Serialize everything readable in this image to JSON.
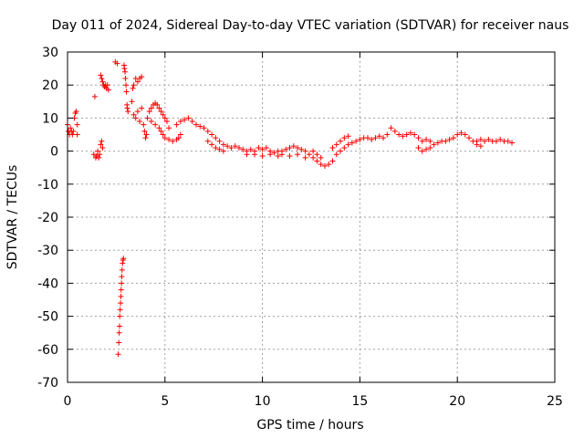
{
  "chart_data": {
    "type": "scatter",
    "title": "Day 011 of 2024, Sidereal Day-to-day VTEC variation (SDTVAR) for receiver naus",
    "xlabel": "GPS time / hours",
    "ylabel": "SDTVAR / TECUs",
    "xlim": [
      0,
      25
    ],
    "ylim": [
      -70,
      30
    ],
    "x_ticks": [
      0,
      5,
      10,
      15,
      20,
      25
    ],
    "y_ticks": [
      -70,
      -60,
      -50,
      -40,
      -30,
      -20,
      -10,
      0,
      10,
      20,
      30
    ],
    "x_tick_labels": [
      "0",
      "5",
      "10",
      "15",
      "20",
      "25"
    ],
    "y_tick_labels": [
      "-70",
      "-60",
      "-50",
      "-40",
      "-30",
      "-20",
      "-10",
      "0",
      "10",
      "20",
      "30"
    ],
    "grid": true,
    "marker": "+",
    "color": "#ff0000",
    "series": [
      {
        "name": "SDTVAR",
        "points": [
          [
            0.0,
            8
          ],
          [
            0.05,
            6
          ],
          [
            0.1,
            5
          ],
          [
            0.15,
            7
          ],
          [
            0.2,
            6
          ],
          [
            0.25,
            5
          ],
          [
            0.3,
            6
          ],
          [
            0.35,
            10
          ],
          [
            0.4,
            11.5
          ],
          [
            0.45,
            12
          ],
          [
            0.5,
            8
          ],
          [
            0.5,
            5
          ],
          [
            1.4,
            16.5
          ],
          [
            1.35,
            -1
          ],
          [
            1.45,
            -2
          ],
          [
            1.5,
            -1.5
          ],
          [
            1.55,
            0
          ],
          [
            1.6,
            -2
          ],
          [
            1.65,
            -1
          ],
          [
            1.7,
            2
          ],
          [
            1.75,
            3
          ],
          [
            1.8,
            1
          ],
          [
            1.7,
            23
          ],
          [
            1.75,
            22
          ],
          [
            1.8,
            21
          ],
          [
            1.85,
            20
          ],
          [
            1.9,
            19.5
          ],
          [
            1.95,
            20
          ],
          [
            2.0,
            19
          ],
          [
            2.05,
            20
          ],
          [
            2.1,
            18.5
          ],
          [
            2.45,
            27
          ],
          [
            2.55,
            26.5
          ],
          [
            2.6,
            -61.5
          ],
          [
            2.63,
            -58
          ],
          [
            2.65,
            -55
          ],
          [
            2.67,
            -53
          ],
          [
            2.68,
            -50
          ],
          [
            2.7,
            -48
          ],
          [
            2.72,
            -46
          ],
          [
            2.74,
            -44
          ],
          [
            2.75,
            -42
          ],
          [
            2.77,
            -40
          ],
          [
            2.78,
            -38
          ],
          [
            2.8,
            -36
          ],
          [
            2.82,
            -34
          ],
          [
            2.85,
            -33
          ],
          [
            2.87,
            -32.5
          ],
          [
            2.9,
            26
          ],
          [
            2.92,
            25
          ],
          [
            2.95,
            24
          ],
          [
            2.97,
            22
          ],
          [
            3.0,
            20
          ],
          [
            3.02,
            18
          ],
          [
            3.05,
            14
          ],
          [
            3.07,
            13
          ],
          [
            3.1,
            12
          ],
          [
            3.3,
            15
          ],
          [
            3.35,
            19
          ],
          [
            3.4,
            20
          ],
          [
            3.5,
            22
          ],
          [
            3.6,
            21
          ],
          [
            3.7,
            22
          ],
          [
            3.8,
            22.5
          ],
          [
            3.4,
            11
          ],
          [
            3.5,
            10
          ],
          [
            3.6,
            12
          ],
          [
            3.7,
            9
          ],
          [
            3.8,
            13
          ],
          [
            3.9,
            8
          ],
          [
            3.95,
            6
          ],
          [
            4.0,
            4
          ],
          [
            4.05,
            5
          ],
          [
            4.1,
            10
          ],
          [
            4.2,
            12
          ],
          [
            4.3,
            13
          ],
          [
            4.4,
            14
          ],
          [
            4.5,
            14.5
          ],
          [
            4.6,
            14
          ],
          [
            4.7,
            13
          ],
          [
            4.8,
            12
          ],
          [
            4.9,
            11
          ],
          [
            5.0,
            10
          ],
          [
            5.1,
            9
          ],
          [
            5.2,
            7
          ],
          [
            4.3,
            9
          ],
          [
            4.5,
            8
          ],
          [
            4.7,
            7
          ],
          [
            4.8,
            6
          ],
          [
            4.9,
            5
          ],
          [
            5.0,
            4
          ],
          [
            5.2,
            3.5
          ],
          [
            5.4,
            3
          ],
          [
            5.6,
            3.5
          ],
          [
            5.7,
            4
          ],
          [
            5.8,
            5
          ],
          [
            5.6,
            8
          ],
          [
            5.8,
            9
          ],
          [
            6.0,
            9.5
          ],
          [
            6.2,
            10
          ],
          [
            6.4,
            9
          ],
          [
            6.6,
            8
          ],
          [
            6.8,
            7.5
          ],
          [
            7.0,
            7
          ],
          [
            7.2,
            6
          ],
          [
            7.4,
            5
          ],
          [
            7.6,
            4
          ],
          [
            7.8,
            3
          ],
          [
            8.0,
            2
          ],
          [
            8.2,
            1.5
          ],
          [
            8.4,
            1
          ],
          [
            8.6,
            1.5
          ],
          [
            8.8,
            1
          ],
          [
            9.0,
            0.5
          ],
          [
            7.2,
            3
          ],
          [
            7.4,
            2
          ],
          [
            7.6,
            1
          ],
          [
            7.8,
            0.5
          ],
          [
            8.0,
            0
          ],
          [
            9.2,
            0
          ],
          [
            9.4,
            0.5
          ],
          [
            9.6,
            0
          ],
          [
            9.8,
            1
          ],
          [
            10.0,
            0.5
          ],
          [
            10.2,
            1
          ],
          [
            10.4,
            0
          ],
          [
            10.6,
            -0.5
          ],
          [
            10.8,
            0
          ],
          [
            9.2,
            -1
          ],
          [
            9.6,
            -1
          ],
          [
            10.0,
            -1.5
          ],
          [
            10.4,
            -1
          ],
          [
            10.8,
            -1.5
          ],
          [
            11.0,
            0
          ],
          [
            11.2,
            0.5
          ],
          [
            11.4,
            1
          ],
          [
            11.6,
            1.5
          ],
          [
            11.8,
            1
          ],
          [
            12.0,
            0.5
          ],
          [
            12.2,
            0
          ],
          [
            11.0,
            -1
          ],
          [
            11.4,
            -1.5
          ],
          [
            11.8,
            -1
          ],
          [
            12.2,
            -2
          ],
          [
            12.4,
            -1
          ],
          [
            12.6,
            -2
          ],
          [
            12.8,
            -3
          ],
          [
            13.0,
            -4
          ],
          [
            13.2,
            -4.5
          ],
          [
            13.4,
            -4
          ],
          [
            13.6,
            -3
          ],
          [
            12.6,
            0
          ],
          [
            12.8,
            -1
          ],
          [
            13.0,
            -2
          ],
          [
            13.8,
            -1
          ],
          [
            14.0,
            0
          ],
          [
            14.2,
            1
          ],
          [
            14.4,
            2
          ],
          [
            14.6,
            2.5
          ],
          [
            14.8,
            3
          ],
          [
            15.0,
            3.5
          ],
          [
            15.2,
            4
          ],
          [
            13.6,
            1
          ],
          [
            13.8,
            2
          ],
          [
            14.0,
            3
          ],
          [
            14.2,
            4
          ],
          [
            14.4,
            4.5
          ],
          [
            15.4,
            4
          ],
          [
            15.6,
            3.5
          ],
          [
            15.8,
            4
          ],
          [
            16.0,
            4.5
          ],
          [
            16.2,
            4
          ],
          [
            16.4,
            5
          ],
          [
            16.6,
            7
          ],
          [
            16.8,
            6
          ],
          [
            17.0,
            5
          ],
          [
            17.2,
            4.5
          ],
          [
            17.4,
            5
          ],
          [
            17.6,
            5.5
          ],
          [
            17.8,
            5
          ],
          [
            18.0,
            4
          ],
          [
            18.0,
            1
          ],
          [
            18.2,
            0
          ],
          [
            18.4,
            0.5
          ],
          [
            18.6,
            1
          ],
          [
            18.8,
            2
          ],
          [
            19.0,
            2.5
          ],
          [
            19.2,
            3
          ],
          [
            19.4,
            3
          ],
          [
            19.6,
            3.5
          ],
          [
            19.8,
            4
          ],
          [
            18.2,
            3
          ],
          [
            18.4,
            3.5
          ],
          [
            18.6,
            3
          ],
          [
            20.0,
            5
          ],
          [
            20.2,
            5.5
          ],
          [
            20.4,
            5
          ],
          [
            20.6,
            4
          ],
          [
            20.8,
            3
          ],
          [
            21.0,
            2
          ],
          [
            21.2,
            1.5
          ],
          [
            21.0,
            3
          ],
          [
            21.2,
            3.5
          ],
          [
            21.4,
            3
          ],
          [
            21.6,
            3.5
          ],
          [
            21.8,
            3
          ],
          [
            22.0,
            3
          ],
          [
            22.2,
            3.5
          ],
          [
            22.4,
            3
          ],
          [
            22.6,
            3
          ],
          [
            22.8,
            2.5
          ]
        ]
      }
    ]
  }
}
